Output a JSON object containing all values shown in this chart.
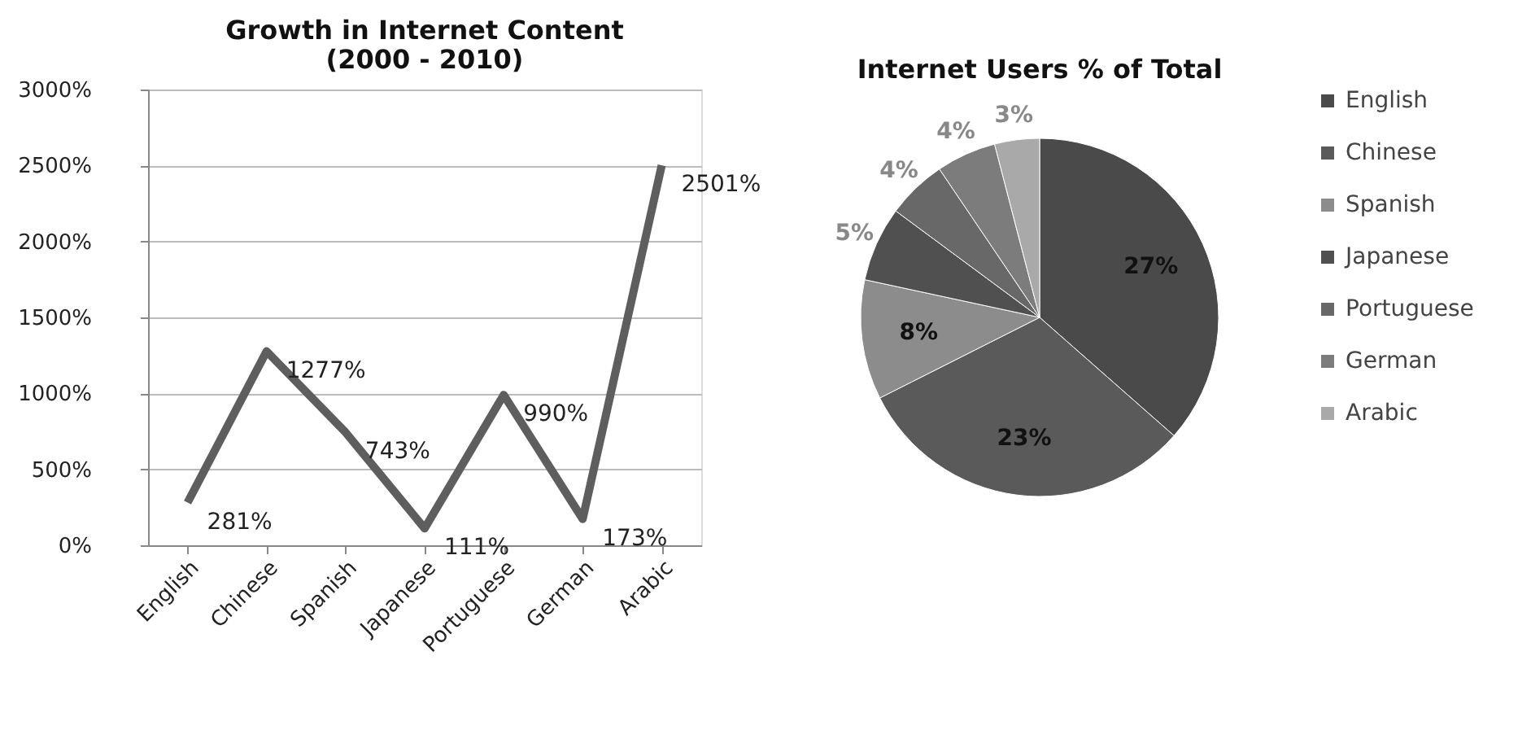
{
  "chart_data": [
    {
      "type": "line",
      "title": "Growth in Internet Content\n(2000 - 2010)",
      "categories": [
        "English",
        "Chinese",
        "Spanish",
        "Japanese",
        "Portuguese",
        "German",
        "Arabic"
      ],
      "series": [
        {
          "color": "#5e5e5e",
          "values": [
            281,
            1277,
            743,
            111,
            990,
            173,
            2501
          ],
          "value_labels": [
            "281%",
            "1277%",
            "743%",
            "111%",
            "990%",
            "173%",
            "2501%"
          ]
        }
      ],
      "ylim": [
        0,
        3000
      ],
      "yticks": [
        {
          "value": 0,
          "label": "0%"
        },
        {
          "value": 500,
          "label": "500%"
        },
        {
          "value": 1000,
          "label": "1000%"
        },
        {
          "value": 1500,
          "label": "1500%"
        },
        {
          "value": 2000,
          "label": "2000%"
        },
        {
          "value": 2500,
          "label": "2500%"
        },
        {
          "value": 3000,
          "label": "3000%"
        }
      ],
      "grid": "y",
      "marker": "none",
      "line_style": "solid"
    },
    {
      "type": "pie",
      "title": "Internet Users % of Total",
      "categories": [
        "English",
        "Chinese",
        "Spanish",
        "Japanese",
        "Portuguese",
        "German",
        "Arabic"
      ],
      "values": [
        27,
        23,
        8,
        5,
        4,
        4,
        3
      ],
      "value_labels": [
        "27%",
        "23%",
        "8%",
        "5%",
        "4%",
        "4%",
        "3%"
      ],
      "colors": [
        "#4a4a4a",
        "#5a5a5a",
        "#8c8c8c",
        "#505050",
        "#686868",
        "#7c7c7c",
        "#a9a9a9"
      ],
      "legend": "right"
    }
  ]
}
